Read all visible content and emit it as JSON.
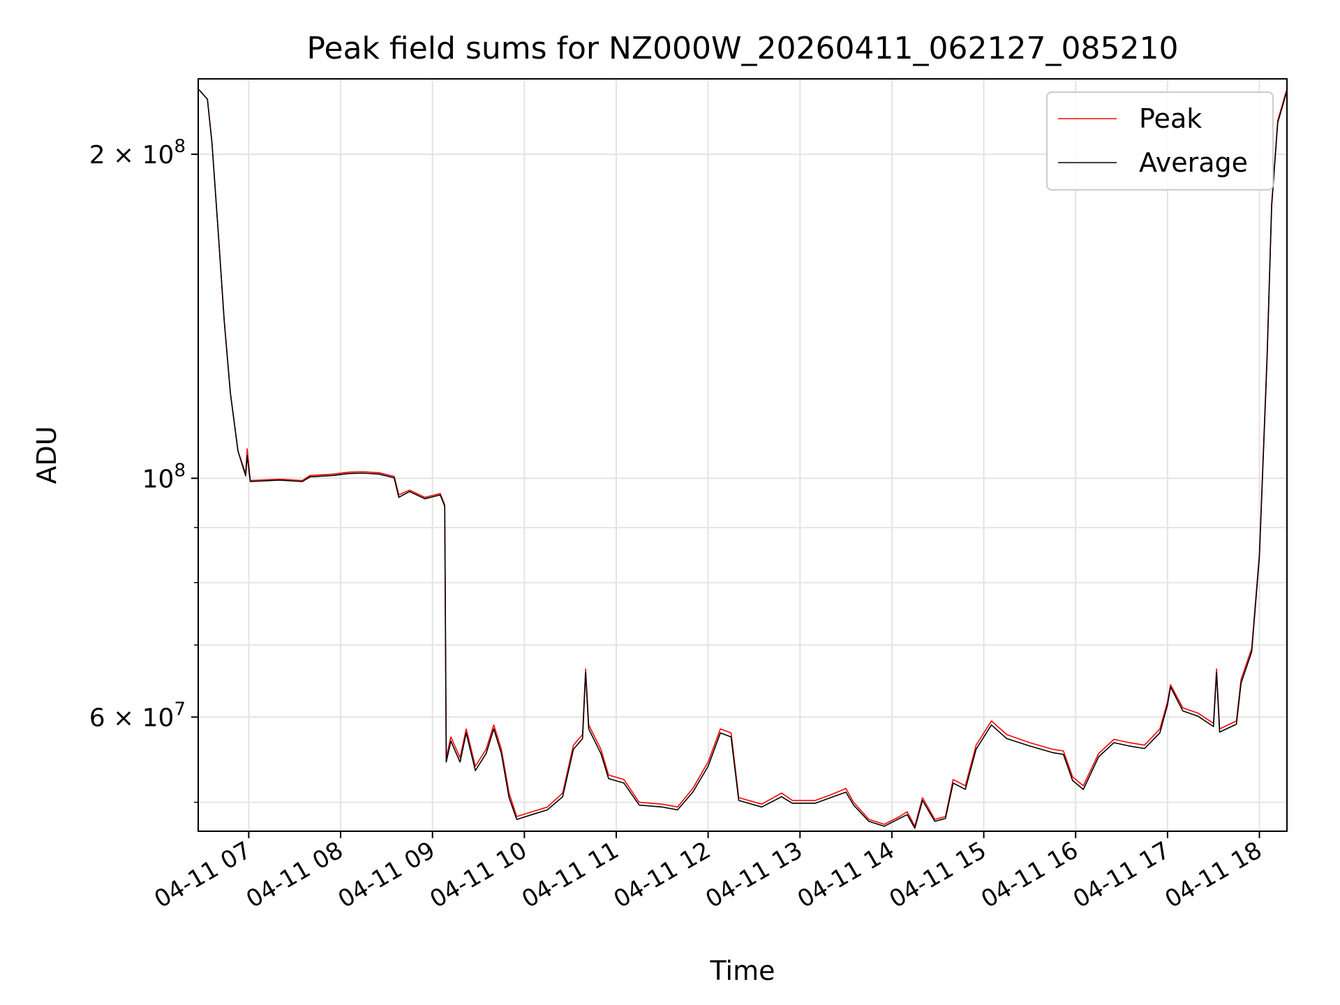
{
  "chart_data": {
    "type": "line",
    "title": "Peak field sums for NZ000W_20260411_062127_085210",
    "xlabel": "Time",
    "ylabel": "ADU",
    "yscale": "log",
    "xlim": [
      "2026-04-11 06:27",
      "2026-04-11 18:18"
    ],
    "ylim": [
      47000000,
      235000000
    ],
    "grid": true,
    "legend_position": "upper right",
    "x_ticks": [
      {
        "value": "2026-04-11 07:00",
        "label": "04-11 07"
      },
      {
        "value": "2026-04-11 08:00",
        "label": "04-11 08"
      },
      {
        "value": "2026-04-11 09:00",
        "label": "04-11 09"
      },
      {
        "value": "2026-04-11 10:00",
        "label": "04-11 10"
      },
      {
        "value": "2026-04-11 11:00",
        "label": "04-11 11"
      },
      {
        "value": "2026-04-11 12:00",
        "label": "04-11 12"
      },
      {
        "value": "2026-04-11 13:00",
        "label": "04-11 13"
      },
      {
        "value": "2026-04-11 14:00",
        "label": "04-11 14"
      },
      {
        "value": "2026-04-11 15:00",
        "label": "04-11 15"
      },
      {
        "value": "2026-04-11 16:00",
        "label": "04-11 16"
      },
      {
        "value": "2026-04-11 17:00",
        "label": "04-11 17"
      },
      {
        "value": "2026-04-11 18:00",
        "label": "04-11 18"
      }
    ],
    "y_major_ticks": [
      {
        "value": 60000000,
        "mantissa": "6",
        "base": "10",
        "exponent": "7"
      },
      {
        "value": 100000000,
        "mantissa": "",
        "base": "10",
        "exponent": "8"
      },
      {
        "value": 200000000,
        "mantissa": "2",
        "base": "10",
        "exponent": "8"
      }
    ],
    "y_minor_ticks": [
      50000000,
      70000000,
      80000000,
      90000000
    ],
    "series": [
      {
        "name": "Peak",
        "color": "#ff0000",
        "points": [
          [
            "2026-04-11 06:27",
            230000000
          ],
          [
            "2026-04-11 06:33",
            225000000
          ],
          [
            "2026-04-11 06:36",
            205000000
          ],
          [
            "2026-04-11 06:40",
            170000000
          ],
          [
            "2026-04-11 06:44",
            140000000
          ],
          [
            "2026-04-11 06:48",
            120000000
          ],
          [
            "2026-04-11 06:53",
            106000000
          ],
          [
            "2026-04-11 06:58",
            101000000
          ],
          [
            "2026-04-11 06:59",
            106500000
          ],
          [
            "2026-04-11 07:01",
            99500000
          ],
          [
            "2026-04-11 07:20",
            99800000
          ],
          [
            "2026-04-11 07:35",
            99500000
          ],
          [
            "2026-04-11 07:40",
            100600000
          ],
          [
            "2026-04-11 07:55",
            100900000
          ],
          [
            "2026-04-11 08:05",
            101300000
          ],
          [
            "2026-04-11 08:15",
            101400000
          ],
          [
            "2026-04-11 08:25",
            101200000
          ],
          [
            "2026-04-11 08:35",
            100400000
          ],
          [
            "2026-04-11 08:38",
            96500000
          ],
          [
            "2026-04-11 08:45",
            97500000
          ],
          [
            "2026-04-11 08:55",
            96000000
          ],
          [
            "2026-04-11 09:05",
            96800000
          ],
          [
            "2026-04-11 09:08",
            94500000
          ],
          [
            "2026-04-11 09:09",
            55000000
          ],
          [
            "2026-04-11 09:12",
            57500000
          ],
          [
            "2026-04-11 09:18",
            55000000
          ],
          [
            "2026-04-11 09:22",
            58500000
          ],
          [
            "2026-04-11 09:28",
            54000000
          ],
          [
            "2026-04-11 09:35",
            56000000
          ],
          [
            "2026-04-11 09:40",
            59000000
          ],
          [
            "2026-04-11 09:45",
            56000000
          ],
          [
            "2026-04-11 09:50",
            51000000
          ],
          [
            "2026-04-11 09:55",
            48500000
          ],
          [
            "2026-04-11 10:05",
            49000000
          ],
          [
            "2026-04-11 10:15",
            49500000
          ],
          [
            "2026-04-11 10:25",
            51000000
          ],
          [
            "2026-04-11 10:32",
            56500000
          ],
          [
            "2026-04-11 10:38",
            57800000
          ],
          [
            "2026-04-11 10:40",
            66500000
          ],
          [
            "2026-04-11 10:42",
            59000000
          ],
          [
            "2026-04-11 10:50",
            56000000
          ],
          [
            "2026-04-11 10:55",
            53000000
          ],
          [
            "2026-04-11 11:05",
            52500000
          ],
          [
            "2026-04-11 11:15",
            50000000
          ],
          [
            "2026-04-11 11:30",
            49800000
          ],
          [
            "2026-04-11 11:40",
            49500000
          ],
          [
            "2026-04-11 11:50",
            51500000
          ],
          [
            "2026-04-11 12:00",
            54500000
          ],
          [
            "2026-04-11 12:08",
            58500000
          ],
          [
            "2026-04-11 12:15",
            58000000
          ],
          [
            "2026-04-11 12:20",
            50500000
          ],
          [
            "2026-04-11 12:35",
            49800000
          ],
          [
            "2026-04-11 12:48",
            51000000
          ],
          [
            "2026-04-11 12:55",
            50200000
          ],
          [
            "2026-04-11 13:10",
            50200000
          ],
          [
            "2026-04-11 13:20",
            50800000
          ],
          [
            "2026-04-11 13:30",
            51500000
          ],
          [
            "2026-04-11 13:35",
            50000000
          ],
          [
            "2026-04-11 13:45",
            48200000
          ],
          [
            "2026-04-11 13:55",
            47700000
          ],
          [
            "2026-04-11 14:05",
            48500000
          ],
          [
            "2026-04-11 14:10",
            49000000
          ],
          [
            "2026-04-11 14:15",
            47500000
          ],
          [
            "2026-04-11 14:20",
            50500000
          ],
          [
            "2026-04-11 14:28",
            48200000
          ],
          [
            "2026-04-11 14:35",
            48500000
          ],
          [
            "2026-04-11 14:40",
            52500000
          ],
          [
            "2026-04-11 14:48",
            51800000
          ],
          [
            "2026-04-11 14:55",
            56500000
          ],
          [
            "2026-04-11 15:05",
            59500000
          ],
          [
            "2026-04-11 15:15",
            57800000
          ],
          [
            "2026-04-11 15:30",
            56800000
          ],
          [
            "2026-04-11 15:45",
            56000000
          ],
          [
            "2026-04-11 15:52",
            55800000
          ],
          [
            "2026-04-11 15:58",
            52800000
          ],
          [
            "2026-04-11 16:05",
            51800000
          ],
          [
            "2026-04-11 16:15",
            55500000
          ],
          [
            "2026-04-11 16:25",
            57200000
          ],
          [
            "2026-04-11 16:35",
            56800000
          ],
          [
            "2026-04-11 16:45",
            56500000
          ],
          [
            "2026-04-11 16:55",
            58500000
          ],
          [
            "2026-04-11 17:00",
            62000000
          ],
          [
            "2026-04-11 17:02",
            64300000
          ],
          [
            "2026-04-11 17:10",
            61200000
          ],
          [
            "2026-04-11 17:20",
            60500000
          ],
          [
            "2026-04-11 17:30",
            59200000
          ],
          [
            "2026-04-11 17:32",
            66500000
          ],
          [
            "2026-04-11 17:34",
            58500000
          ],
          [
            "2026-04-11 17:45",
            59500000
          ],
          [
            "2026-04-11 17:48",
            65000000
          ],
          [
            "2026-04-11 17:55",
            69500000
          ],
          [
            "2026-04-11 18:00",
            85000000
          ],
          [
            "2026-04-11 18:05",
            130000000
          ],
          [
            "2026-04-11 18:08",
            180000000
          ],
          [
            "2026-04-11 18:12",
            215000000
          ],
          [
            "2026-04-11 18:18",
            230000000
          ]
        ]
      },
      {
        "name": "Average",
        "color": "#000000",
        "points": [
          [
            "2026-04-11 06:27",
            230000000
          ],
          [
            "2026-04-11 06:33",
            225000000
          ],
          [
            "2026-04-11 06:36",
            205000000
          ],
          [
            "2026-04-11 06:40",
            170000000
          ],
          [
            "2026-04-11 06:44",
            140000000
          ],
          [
            "2026-04-11 06:48",
            120000000
          ],
          [
            "2026-04-11 06:53",
            106000000
          ],
          [
            "2026-04-11 06:58",
            100500000
          ],
          [
            "2026-04-11 06:59",
            105000000
          ],
          [
            "2026-04-11 07:01",
            99300000
          ],
          [
            "2026-04-11 07:20",
            99600000
          ],
          [
            "2026-04-11 07:35",
            99300000
          ],
          [
            "2026-04-11 07:40",
            100300000
          ],
          [
            "2026-04-11 07:55",
            100600000
          ],
          [
            "2026-04-11 08:05",
            101000000
          ],
          [
            "2026-04-11 08:15",
            101100000
          ],
          [
            "2026-04-11 08:25",
            100900000
          ],
          [
            "2026-04-11 08:35",
            100100000
          ],
          [
            "2026-04-11 08:38",
            96000000
          ],
          [
            "2026-04-11 08:45",
            97200000
          ],
          [
            "2026-04-11 08:55",
            95700000
          ],
          [
            "2026-04-11 09:05",
            96500000
          ],
          [
            "2026-04-11 09:08",
            94200000
          ],
          [
            "2026-04-11 09:09",
            54500000
          ],
          [
            "2026-04-11 09:12",
            57000000
          ],
          [
            "2026-04-11 09:18",
            54500000
          ],
          [
            "2026-04-11 09:22",
            58000000
          ],
          [
            "2026-04-11 09:28",
            53500000
          ],
          [
            "2026-04-11 09:35",
            55500000
          ],
          [
            "2026-04-11 09:40",
            58500000
          ],
          [
            "2026-04-11 09:45",
            55500000
          ],
          [
            "2026-04-11 09:50",
            50500000
          ],
          [
            "2026-04-11 09:55",
            48200000
          ],
          [
            "2026-04-11 10:05",
            48700000
          ],
          [
            "2026-04-11 10:15",
            49200000
          ],
          [
            "2026-04-11 10:25",
            50600000
          ],
          [
            "2026-04-11 10:32",
            56000000
          ],
          [
            "2026-04-11 10:38",
            57300000
          ],
          [
            "2026-04-11 10:40",
            66000000
          ],
          [
            "2026-04-11 10:42",
            58500000
          ],
          [
            "2026-04-11 10:50",
            55500000
          ],
          [
            "2026-04-11 10:55",
            52600000
          ],
          [
            "2026-04-11 11:05",
            52100000
          ],
          [
            "2026-04-11 11:15",
            49700000
          ],
          [
            "2026-04-11 11:30",
            49500000
          ],
          [
            "2026-04-11 11:40",
            49200000
          ],
          [
            "2026-04-11 11:50",
            51100000
          ],
          [
            "2026-04-11 12:00",
            54000000
          ],
          [
            "2026-04-11 12:08",
            58000000
          ],
          [
            "2026-04-11 12:15",
            57500000
          ],
          [
            "2026-04-11 12:20",
            50200000
          ],
          [
            "2026-04-11 12:35",
            49500000
          ],
          [
            "2026-04-11 12:48",
            50600000
          ],
          [
            "2026-04-11 12:55",
            49900000
          ],
          [
            "2026-04-11 13:10",
            49900000
          ],
          [
            "2026-04-11 13:20",
            50500000
          ],
          [
            "2026-04-11 13:30",
            51100000
          ],
          [
            "2026-04-11 13:35",
            49700000
          ],
          [
            "2026-04-11 13:45",
            48000000
          ],
          [
            "2026-04-11 13:55",
            47500000
          ],
          [
            "2026-04-11 14:05",
            48300000
          ],
          [
            "2026-04-11 14:10",
            48700000
          ],
          [
            "2026-04-11 14:15",
            47300000
          ],
          [
            "2026-04-11 14:20",
            50200000
          ],
          [
            "2026-04-11 14:28",
            48000000
          ],
          [
            "2026-04-11 14:35",
            48300000
          ],
          [
            "2026-04-11 14:40",
            52100000
          ],
          [
            "2026-04-11 14:48",
            51400000
          ],
          [
            "2026-04-11 14:55",
            56000000
          ],
          [
            "2026-04-11 15:05",
            59000000
          ],
          [
            "2026-04-11 15:15",
            57300000
          ],
          [
            "2026-04-11 15:30",
            56400000
          ],
          [
            "2026-04-11 15:45",
            55600000
          ],
          [
            "2026-04-11 15:52",
            55400000
          ],
          [
            "2026-04-11 15:58",
            52400000
          ],
          [
            "2026-04-11 16:05",
            51400000
          ],
          [
            "2026-04-11 16:15",
            55100000
          ],
          [
            "2026-04-11 16:25",
            56800000
          ],
          [
            "2026-04-11 16:35",
            56400000
          ],
          [
            "2026-04-11 16:45",
            56100000
          ],
          [
            "2026-04-11 16:55",
            58000000
          ],
          [
            "2026-04-11 17:00",
            61600000
          ],
          [
            "2026-04-11 17:02",
            64000000
          ],
          [
            "2026-04-11 17:10",
            60800000
          ],
          [
            "2026-04-11 17:20",
            60100000
          ],
          [
            "2026-04-11 17:30",
            58800000
          ],
          [
            "2026-04-11 17:32",
            66000000
          ],
          [
            "2026-04-11 17:34",
            58100000
          ],
          [
            "2026-04-11 17:45",
            59100000
          ],
          [
            "2026-04-11 17:48",
            64500000
          ],
          [
            "2026-04-11 17:55",
            69000000
          ],
          [
            "2026-04-11 18:00",
            84500000
          ],
          [
            "2026-04-11 18:05",
            129000000
          ],
          [
            "2026-04-11 18:08",
            179000000
          ],
          [
            "2026-04-11 18:12",
            214000000
          ],
          [
            "2026-04-11 18:18",
            229000000
          ]
        ]
      }
    ]
  }
}
